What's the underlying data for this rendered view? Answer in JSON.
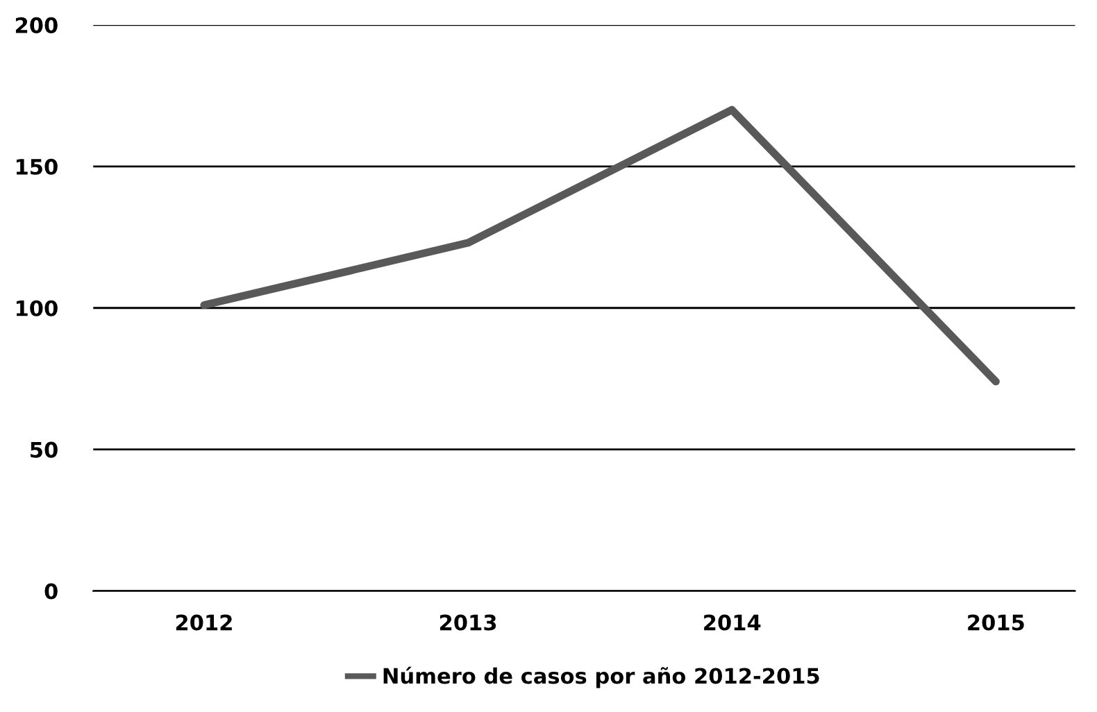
{
  "chart_data": {
    "type": "line",
    "categories": [
      "2012",
      "2013",
      "2014",
      "2015"
    ],
    "series": [
      {
        "name": "Número de casos por año 2012-2015",
        "color": "#595959",
        "values": [
          101,
          123,
          170,
          74
        ]
      }
    ],
    "ylim": [
      0,
      200
    ],
    "yticks": [
      0,
      50,
      100,
      150,
      200
    ],
    "grid": "y",
    "legend": "bottom",
    "marker": "none",
    "line_style": "solid"
  }
}
